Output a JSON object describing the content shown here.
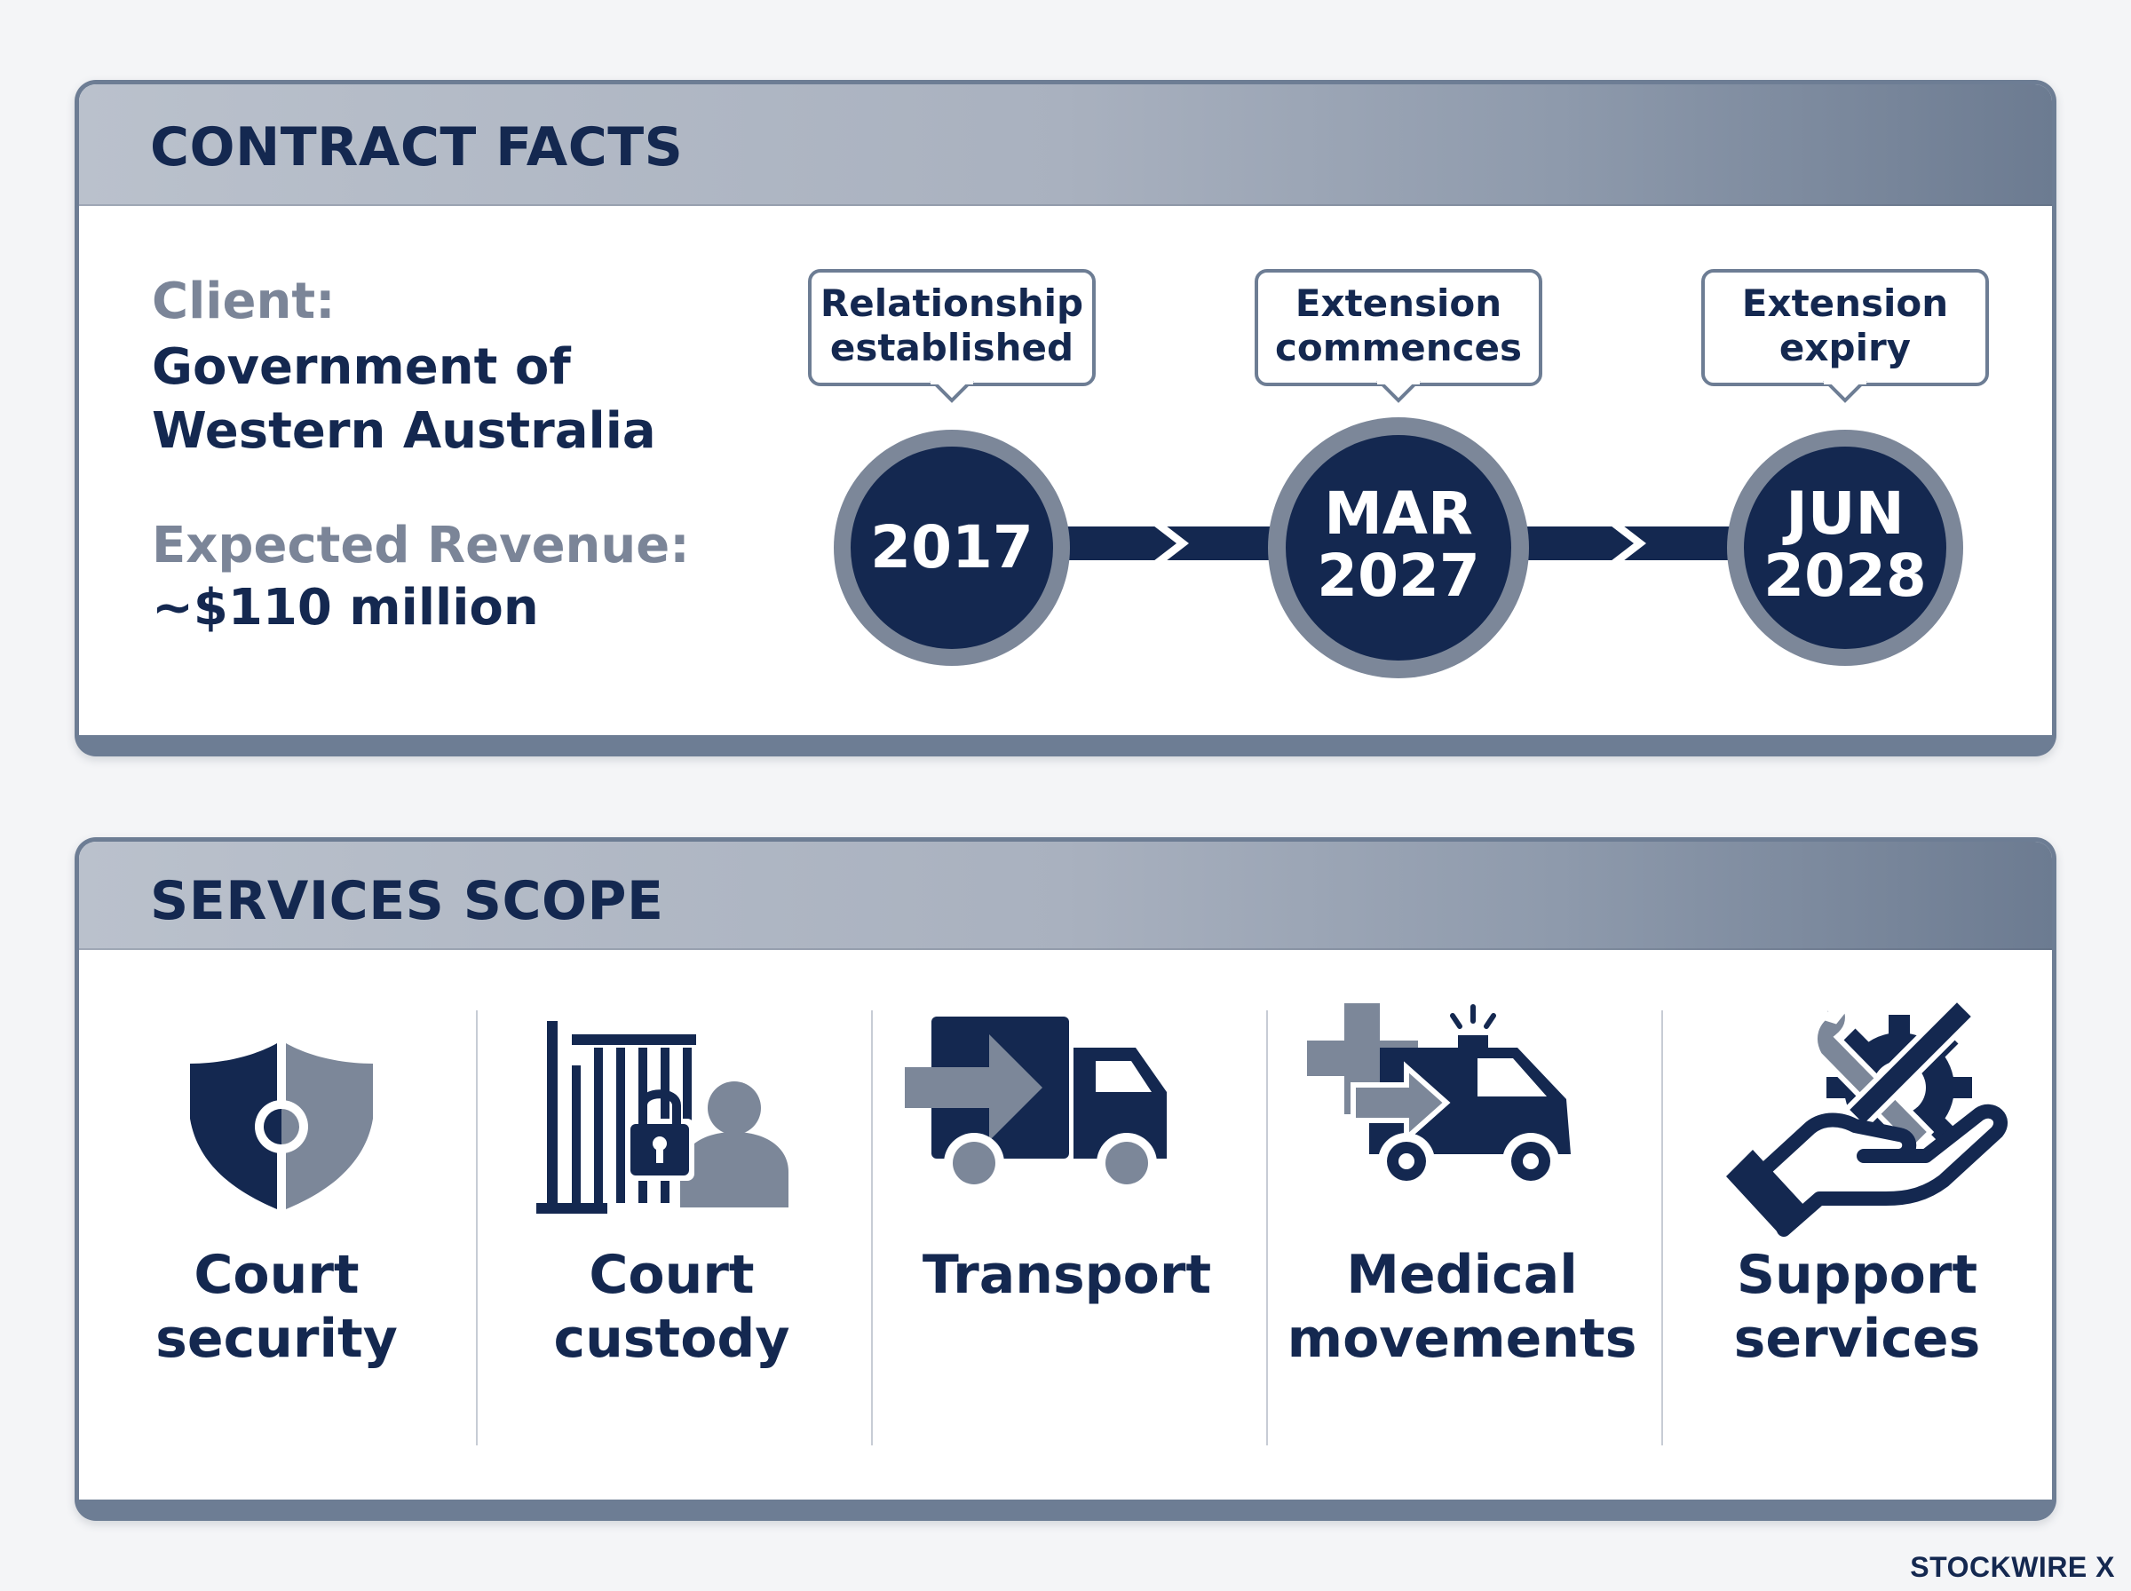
{
  "contract_facts": {
    "title": "CONTRACT FACTS",
    "client_label": "Client:",
    "client_value": "Government of Western Australia",
    "revenue_label": "Expected Revenue:",
    "revenue_value": "~$110 million",
    "timeline": [
      {
        "callout_line1": "Relationship",
        "callout_line2": "established",
        "date_line1": "2017",
        "date_line2": ""
      },
      {
        "callout_line1": "Extension",
        "callout_line2": "commences",
        "date_line1": "MAR",
        "date_line2": "2027"
      },
      {
        "callout_line1": "Extension",
        "callout_line2": "expiry",
        "date_line1": "JUN",
        "date_line2": "2028"
      }
    ]
  },
  "services_scope": {
    "title": "SERVICES SCOPE",
    "items": [
      {
        "line1": "Court",
        "line2": "security",
        "icon": "shield-icon"
      },
      {
        "line1": "Court",
        "line2": "custody",
        "icon": "custody-cell-icon"
      },
      {
        "line1": "Transport",
        "line2": "",
        "icon": "truck-icon"
      },
      {
        "line1": "Medical",
        "line2": "movements",
        "icon": "ambulance-icon"
      },
      {
        "line1": "Support",
        "line2": "services",
        "icon": "support-tools-icon"
      }
    ]
  },
  "brand": "STOCKWIRE X",
  "colors": {
    "navy": "#142850",
    "slate": "#6d7d94",
    "gray_label": "#7b8598",
    "header_light": "#bac1cc",
    "header_dark": "#6c7b91"
  }
}
